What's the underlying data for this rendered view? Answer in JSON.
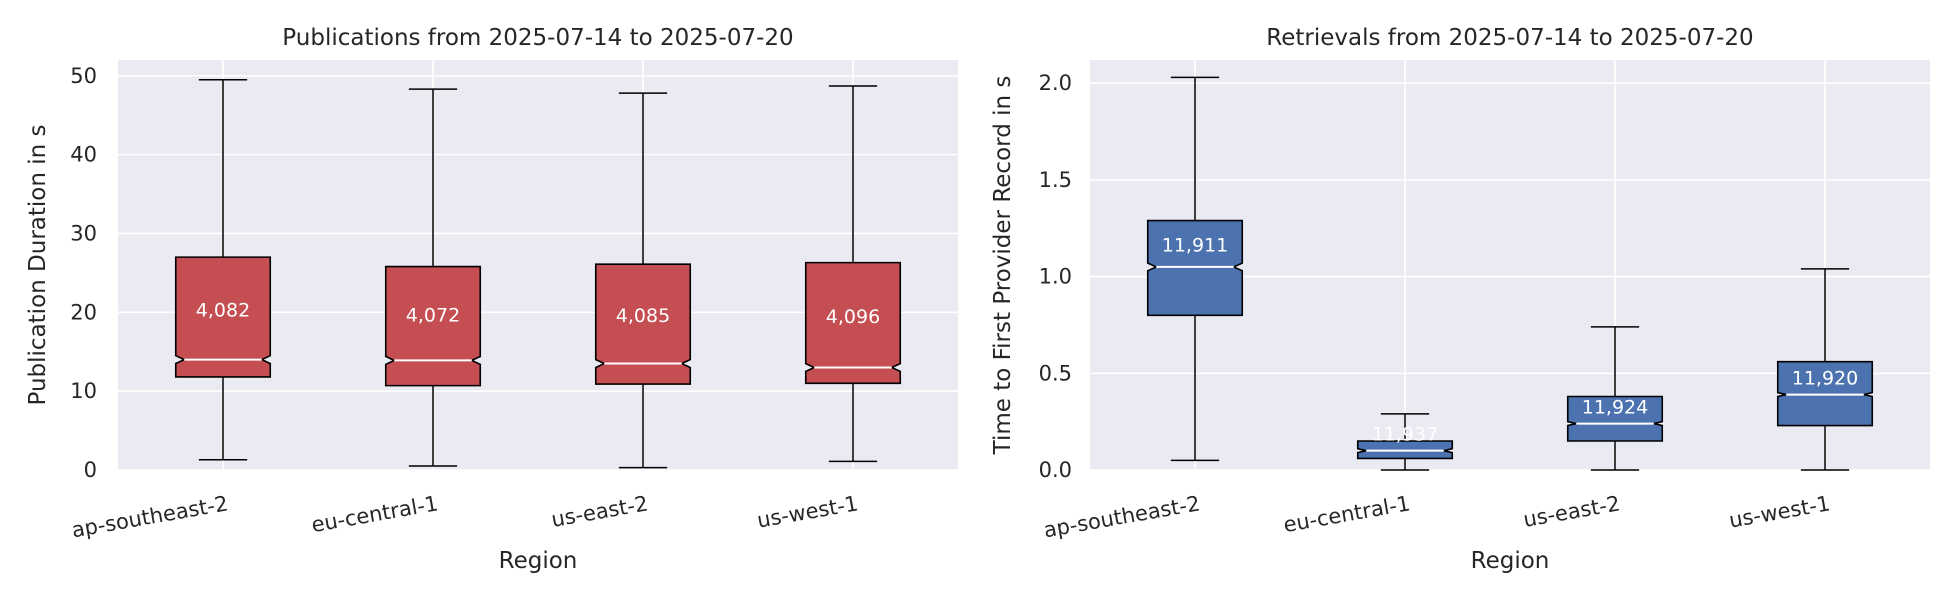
{
  "chart_data": [
    {
      "type": "boxplot",
      "title": "Publications from 2025-07-14 to 2025-07-20",
      "xlabel": "Region",
      "ylabel": "Publication Duration in s",
      "ylim": [
        0,
        52
      ],
      "yticks": [
        "0",
        "10",
        "20",
        "30",
        "40",
        "50"
      ],
      "grid": true,
      "color": "#c44e52",
      "categories": [
        "ap-southeast-2",
        "eu-central-1",
        "us-east-2",
        "us-west-1"
      ],
      "boxes": [
        {
          "min": 1.3,
          "q1": 11.8,
          "median": 14.0,
          "q3": 27.0,
          "max": 49.5,
          "notch": [
            13.5,
            14.5
          ],
          "count": "4,082"
        },
        {
          "min": 0.5,
          "q1": 10.7,
          "median": 13.9,
          "q3": 25.8,
          "max": 48.3,
          "notch": [
            13.4,
            14.4
          ],
          "count": "4,072"
        },
        {
          "min": 0.3,
          "q1": 10.9,
          "median": 13.5,
          "q3": 26.1,
          "max": 47.8,
          "notch": [
            13.0,
            14.0
          ],
          "count": "4,085"
        },
        {
          "min": 1.1,
          "q1": 11.0,
          "median": 13.0,
          "q3": 26.3,
          "max": 48.7,
          "notch": [
            12.5,
            13.5
          ],
          "count": "4,096"
        }
      ]
    },
    {
      "type": "boxplot",
      "title": "Retrievals from 2025-07-14 to 2025-07-20",
      "xlabel": "Region",
      "ylabel": "Time to First Provider Record in s",
      "ylim": [
        0,
        2.12
      ],
      "yticks": [
        "0.0",
        "0.5",
        "1.0",
        "1.5",
        "2.0"
      ],
      "grid": true,
      "color": "#4c72b0",
      "categories": [
        "ap-southeast-2",
        "eu-central-1",
        "us-east-2",
        "us-west-1"
      ],
      "boxes": [
        {
          "min": 0.05,
          "q1": 0.8,
          "median": 1.05,
          "q3": 1.29,
          "max": 2.03,
          "notch": [
            1.03,
            1.07
          ],
          "count": "11,911"
        },
        {
          "min": 0.0,
          "q1": 0.06,
          "median": 0.1,
          "q3": 0.15,
          "max": 0.29,
          "notch": [
            0.09,
            0.11
          ],
          "count": "11,937"
        },
        {
          "min": 0.0,
          "q1": 0.15,
          "median": 0.24,
          "q3": 0.38,
          "max": 0.74,
          "notch": [
            0.23,
            0.25
          ],
          "count": "11,924"
        },
        {
          "min": 0.0,
          "q1": 0.23,
          "median": 0.39,
          "q3": 0.56,
          "max": 1.04,
          "notch": [
            0.38,
            0.4
          ],
          "count": "11,920"
        }
      ]
    }
  ]
}
